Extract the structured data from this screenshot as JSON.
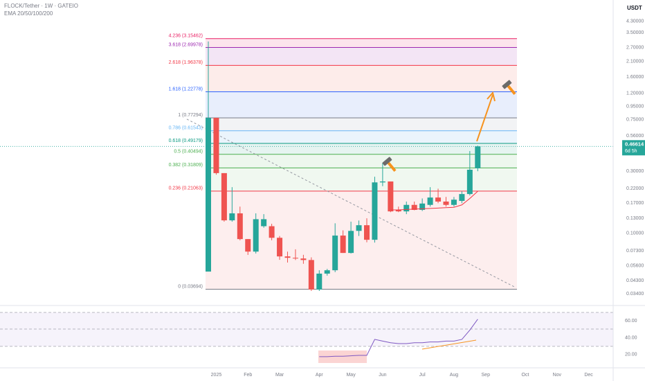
{
  "chart_data": [
    {
      "type": "candlestick",
      "title": "FLOCK/Tether · 1W · GATEIO",
      "subtitle": "EMA 20/50/100/200",
      "currency": "USDT",
      "log_scale": true,
      "up_color": "#26a69a",
      "down_color": "#ef5350",
      "categories": [
        null,
        "2025",
        null,
        null,
        null,
        "Feb",
        null,
        null,
        null,
        "Mar",
        null,
        null,
        null,
        null,
        "Apr",
        null,
        null,
        null,
        "May",
        null,
        null,
        null,
        "Jun",
        null,
        null,
        null,
        null,
        "Jul",
        null,
        null,
        null,
        "Aug",
        null,
        null,
        null,
        "Sep",
        null,
        null,
        null,
        null,
        "Oct",
        null,
        null,
        null,
        "Nov",
        null,
        null,
        null,
        "Dec",
        null
      ],
      "open": [
        0.0505,
        0.774,
        0.29,
        0.1254,
        0.142,
        0.0899,
        0.072,
        0.113,
        0.113,
        0.092,
        0.0661,
        0.0645,
        0.0637,
        0.062,
        0.0367,
        0.0487,
        0.0517,
        0.0957,
        0.0703,
        0.104,
        0.115,
        0.0888,
        0.246,
        0.25,
        0.151,
        0.147,
        0.165,
        0.151,
        0.165,
        0.188,
        0.175,
        0.165,
        0.177,
        0.2,
        0.316,
        null,
        null,
        null,
        null,
        null,
        null,
        null,
        null,
        null,
        null,
        null,
        null,
        null,
        null,
        null
      ],
      "high": [
        3.0,
        0.774,
        0.29,
        0.226,
        0.16,
        0.0899,
        0.142,
        0.14,
        0.118,
        0.095,
        0.072,
        0.075,
        0.068,
        0.065,
        0.0517,
        0.053,
        0.119,
        0.105,
        0.1225,
        0.125,
        0.13,
        0.272,
        0.348,
        0.25,
        0.16,
        0.175,
        0.175,
        0.185,
        0.226,
        0.22,
        0.19,
        0.19,
        0.21,
        0.429,
        0.473,
        null,
        null,
        null,
        null,
        null,
        null,
        null,
        null,
        null,
        null,
        null,
        null,
        null,
        null,
        null
      ],
      "low": [
        0.0505,
        0.282,
        0.1225,
        0.1225,
        0.088,
        0.0679,
        0.0696,
        0.11,
        0.088,
        0.0622,
        0.0593,
        0.062,
        0.058,
        0.0358,
        0.0358,
        0.047,
        0.05,
        0.0703,
        0.0696,
        0.095,
        0.085,
        0.0845,
        0.23,
        0.145,
        0.145,
        0.14,
        0.15,
        0.148,
        0.16,
        0.17,
        0.16,
        0.16,
        0.17,
        0.195,
        0.3,
        null,
        null,
        null,
        null,
        null,
        null,
        null,
        null,
        null,
        null,
        null,
        null,
        null,
        null,
        null
      ],
      "close": [
        0.774,
        0.29,
        0.1254,
        0.142,
        0.0899,
        0.072,
        0.128,
        0.128,
        0.092,
        0.0661,
        0.0645,
        0.0637,
        0.062,
        0.0367,
        0.0487,
        0.0517,
        0.0957,
        0.0703,
        0.104,
        0.115,
        0.0888,
        0.246,
        0.25,
        0.147,
        0.147,
        0.165,
        0.151,
        0.169,
        0.188,
        0.175,
        0.165,
        0.181,
        0.2,
        0.308,
        0.46614,
        null,
        null,
        null,
        null,
        null,
        null,
        null,
        null,
        null,
        null,
        null,
        null,
        null,
        null,
        null
      ],
      "series": [
        {
          "color": "#f23645",
          "values": [
            null,
            null,
            null,
            null,
            null,
            null,
            null,
            null,
            null,
            null,
            null,
            null,
            null,
            null,
            null,
            null,
            null,
            null,
            null,
            null,
            null,
            null,
            null,
            0.151,
            0.151,
            0.152,
            0.153,
            0.154,
            0.155,
            0.156,
            0.157,
            0.158,
            0.165,
            0.185,
            0.21,
            null,
            null,
            null,
            null,
            null,
            null,
            null,
            null,
            null,
            null,
            null,
            null,
            null,
            null,
            null
          ]
        }
      ],
      "ylim": [
        0.028,
        4.9
      ],
      "yticks": [
        {
          "value": 4.3,
          "label": "4.30000"
        },
        {
          "value": 3.5,
          "label": "3.50000"
        },
        {
          "value": 2.7,
          "label": "2.70000"
        },
        {
          "value": 2.1,
          "label": "2.10000"
        },
        {
          "value": 1.6,
          "label": "1.60000"
        },
        {
          "value": 1.2,
          "label": "1.20000"
        },
        {
          "value": 0.95,
          "label": "0.95000"
        },
        {
          "value": 0.75,
          "label": "0.75000"
        },
        {
          "value": 0.56,
          "label": "0.56000"
        },
        {
          "value": 0.3,
          "label": "0.30000"
        },
        {
          "value": 0.22,
          "label": "0.22000"
        },
        {
          "value": 0.17,
          "label": "0.17000"
        },
        {
          "value": 0.13,
          "label": "0.13000"
        },
        {
          "value": 0.1,
          "label": "0.10000"
        },
        {
          "value": 0.073,
          "label": "0.07300"
        },
        {
          "value": 0.056,
          "label": "0.05600"
        },
        {
          "value": 0.043,
          "label": "0.04300"
        },
        {
          "value": 0.034,
          "label": "0.03400"
        }
      ],
      "last_price": 0.46614,
      "countdown": "6d 5h",
      "fib_levels": [
        {
          "label": "4.236 (3.15462)",
          "price": 3.15462,
          "color": "#e91e63",
          "fill": "#fce4ec"
        },
        {
          "label": "3.618 (2.69978)",
          "price": 2.69978,
          "color": "#9c27b0",
          "fill": "#f3e5f5"
        },
        {
          "label": "2.618 (1.96378)",
          "price": 1.96378,
          "color": "#f23645",
          "fill": "#fdecea"
        },
        {
          "label": "1.618 (1.22778)",
          "price": 1.22778,
          "color": "#2962ff",
          "fill": "#e8eefc"
        },
        {
          "label": "1 (0.77294)",
          "price": 0.77294,
          "color": "#787b86",
          "fill": "#f2f3f5"
        },
        {
          "label": "0.786 (0.61543)",
          "price": 0.61543,
          "color": "#64b5f6",
          "fill": "#eaf4fc"
        },
        {
          "label": "0.618 (0.49179)",
          "price": 0.49179,
          "color": "#089981",
          "fill": "#e6f4f1"
        },
        {
          "label": "0.5 (0.40494)",
          "price": 0.40494,
          "color": "#4caf50",
          "fill": "#edf7ee"
        },
        {
          "label": "0.382 (0.31809)",
          "price": 0.31809,
          "color": "#4caf50",
          "fill": "#f0f8f0"
        },
        {
          "label": "0.236 (0.21063)",
          "price": 0.21063,
          "color": "#f23645",
          "fill": "#fdeeee"
        },
        {
          "label": "0 (0.03694)",
          "price": 0.03694,
          "color": "#787b86"
        }
      ]
    },
    {
      "type": "line",
      "series": [
        {
          "color": "#7e57c2",
          "values": [
            null,
            null,
            null,
            null,
            null,
            null,
            null,
            null,
            null,
            null,
            null,
            null,
            null,
            null,
            17.5,
            17.5,
            18,
            18,
            18.5,
            19,
            19,
            38,
            36,
            34,
            33,
            33,
            34,
            34,
            35,
            35,
            36,
            36,
            38,
            49,
            62,
            null,
            null,
            null,
            null,
            null,
            null,
            null,
            null,
            null,
            null,
            null,
            null,
            null,
            null,
            null
          ]
        }
      ],
      "ylim": [
        5,
        75
      ],
      "yticks": [
        {
          "value": 60,
          "label": "60.00"
        },
        {
          "value": 40,
          "label": "40.00"
        },
        {
          "value": 20,
          "label": "20.00"
        }
      ]
    }
  ]
}
